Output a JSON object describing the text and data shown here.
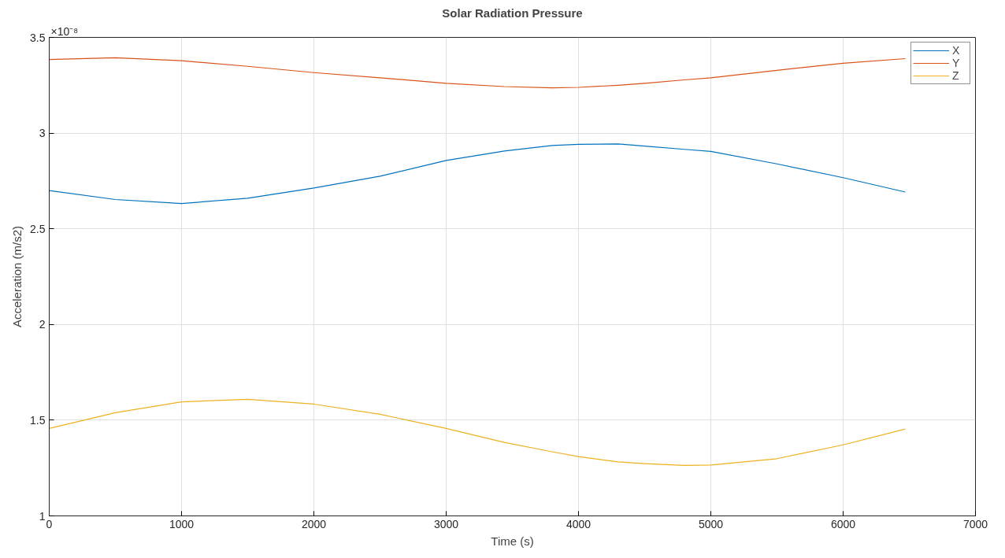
{
  "chart_data": {
    "type": "line",
    "title": "Solar Radiation Pressure",
    "xlabel": "Time (s)",
    "ylabel": "Acceleration (m/s2)",
    "annotations": [
      "×10⁻⁸"
    ],
    "x": [
      0,
      500,
      1000,
      1500,
      2000,
      2500,
      3000,
      3440,
      3800,
      4000,
      4300,
      4500,
      4800,
      5000,
      5500,
      6000,
      6470
    ],
    "series": [
      {
        "name": "X",
        "color": "#0072bd",
        "values": [
          2.7,
          2.653,
          2.632,
          2.66,
          2.713,
          2.775,
          2.857,
          2.906,
          2.935,
          2.941,
          2.943,
          2.932,
          2.915,
          2.904,
          2.839,
          2.767,
          2.692
        ]
      },
      {
        "name": "Y",
        "color": "#d95319",
        "values": [
          3.384,
          3.394,
          3.378,
          3.349,
          3.316,
          3.289,
          3.26,
          3.243,
          3.236,
          3.239,
          3.25,
          3.26,
          3.278,
          3.289,
          3.328,
          3.365,
          3.389
        ]
      },
      {
        "name": "Z",
        "color": "#edb120",
        "values": [
          1.457,
          1.539,
          1.596,
          1.609,
          1.584,
          1.531,
          1.457,
          1.384,
          1.335,
          1.31,
          1.282,
          1.273,
          1.264,
          1.266,
          1.299,
          1.371,
          1.454
        ]
      }
    ],
    "xlim": [
      0,
      7000
    ],
    "ylim": [
      1,
      3.5
    ],
    "xticks": [
      0,
      1000,
      2000,
      3000,
      4000,
      5000,
      6000,
      7000
    ],
    "yticks": [
      1,
      1.5,
      2,
      2.5,
      3,
      3.5
    ],
    "grid": true,
    "legend": "top right",
    "marker": "none",
    "line_style": "solid"
  }
}
